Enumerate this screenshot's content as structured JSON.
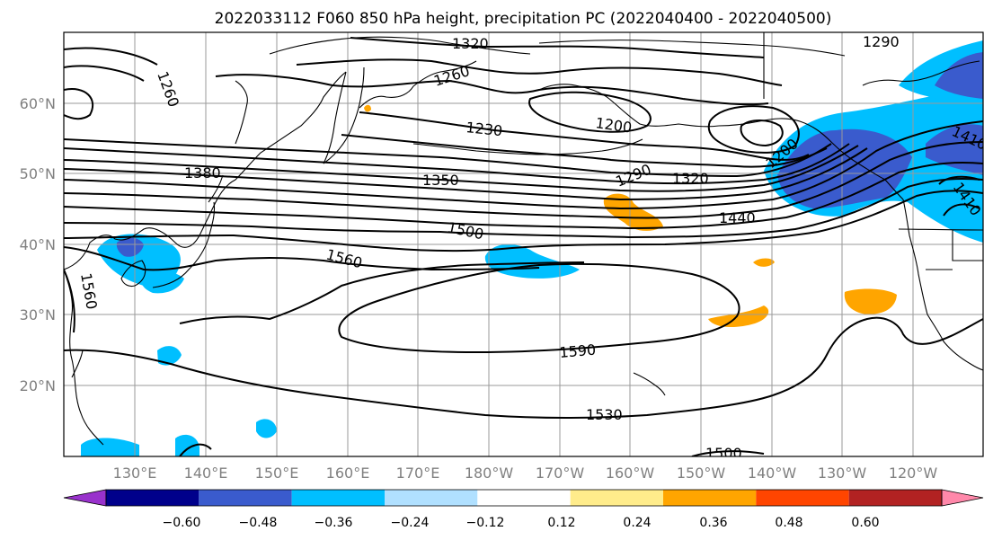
{
  "title": "2022033112 F060 850 hPa height, precipitation PC (2022040400 - 2022040500)",
  "lon_ticks": [
    "130°E",
    "140°E",
    "150°E",
    "160°E",
    "170°E",
    "180°W",
    "170°W",
    "160°W",
    "150°W",
    "140°W",
    "130°W",
    "120°W"
  ],
  "lat_ticks": [
    "20°N",
    "30°N",
    "40°N",
    "50°N",
    "60°N"
  ],
  "colorbar": {
    "ticks": [
      "−0.60",
      "−0.48",
      "−0.36",
      "−0.24",
      "−0.12",
      "0.12",
      "0.24",
      "0.36",
      "0.48",
      "0.60"
    ],
    "colors": [
      "#9932cc",
      "#00008b",
      "#3a5bcd",
      "#00bfff",
      "#b0e0ff",
      "#ffffff",
      "#ffec8b",
      "#ffa500",
      "#ff4500",
      "#b22222",
      "#ff88aa"
    ]
  },
  "contour_labels": [
    "1320",
    "1290",
    "1260",
    "1260",
    "1200",
    "1230",
    "1200",
    "1380",
    "1350",
    "1290",
    "1320",
    "1410",
    "1440",
    "1500",
    "1410",
    "1560",
    "1560",
    "1590",
    "1530",
    "1500"
  ],
  "colors": {
    "negative_strong": "#3a5bcd",
    "negative_mid": "#00bfff",
    "positive_mid": "#ffa500"
  }
}
